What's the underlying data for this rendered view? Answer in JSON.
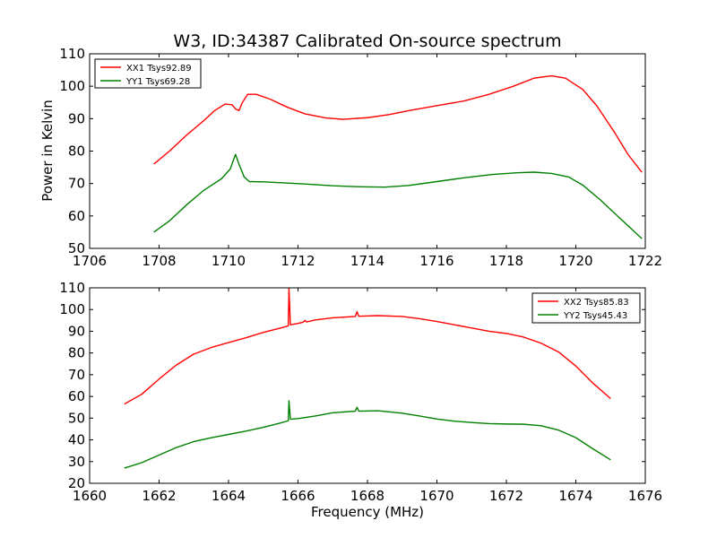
{
  "figure": {
    "title": "W3, ID:34387 Calibrated On-source spectrum",
    "ylabel": "Power in Kelvin",
    "xlabel": "Frequency (MHz)"
  },
  "chart_data": [
    {
      "type": "line",
      "xlim": [
        1706,
        1722
      ],
      "ylim": [
        50,
        110
      ],
      "xticks": [
        "1706",
        "1708",
        "1710",
        "1712",
        "1714",
        "1716",
        "1718",
        "1720",
        "1722"
      ],
      "yticks": [
        "50",
        "60",
        "70",
        "80",
        "90",
        "100",
        "110"
      ],
      "legend_position": "top-left",
      "series": [
        {
          "name": "XX1 Tsys92.89",
          "color": "#ff0000",
          "points": [
            [
              1707.85,
              76
            ],
            [
              1708.3,
              80
            ],
            [
              1708.8,
              85
            ],
            [
              1709.3,
              89.5
            ],
            [
              1709.6,
              92.5
            ],
            [
              1709.9,
              94.5
            ],
            [
              1710.1,
              94.3
            ],
            [
              1710.2,
              93
            ],
            [
              1710.3,
              92.5
            ],
            [
              1710.4,
              95
            ],
            [
              1710.55,
              97.5
            ],
            [
              1710.8,
              97.5
            ],
            [
              1711.2,
              96
            ],
            [
              1711.7,
              93.5
            ],
            [
              1712.2,
              91.5
            ],
            [
              1712.8,
              90.2
            ],
            [
              1713.3,
              89.8
            ],
            [
              1714,
              90.3
            ],
            [
              1714.6,
              91.2
            ],
            [
              1715.2,
              92.5
            ],
            [
              1716,
              94
            ],
            [
              1716.8,
              95.5
            ],
            [
              1717.5,
              97.5
            ],
            [
              1718.2,
              100
            ],
            [
              1718.8,
              102.5
            ],
            [
              1719.3,
              103.2
            ],
            [
              1719.7,
              102.5
            ],
            [
              1720.2,
              99
            ],
            [
              1720.6,
              94
            ],
            [
              1721.1,
              86
            ],
            [
              1721.5,
              79
            ],
            [
              1721.9,
              73.5
            ]
          ]
        },
        {
          "name": "YY1 Tsys69.28",
          "color": "#008000",
          "points": [
            [
              1707.85,
              55
            ],
            [
              1708.3,
              58.5
            ],
            [
              1708.8,
              63.5
            ],
            [
              1709.3,
              68
            ],
            [
              1709.8,
              71.5
            ],
            [
              1710.05,
              74.5
            ],
            [
              1710.2,
              79
            ],
            [
              1710.3,
              76
            ],
            [
              1710.45,
              72
            ],
            [
              1710.6,
              70.6
            ],
            [
              1711,
              70.5
            ],
            [
              1711.6,
              70.2
            ],
            [
              1712.3,
              69.8
            ],
            [
              1713,
              69.3
            ],
            [
              1713.8,
              69
            ],
            [
              1714.5,
              68.9
            ],
            [
              1715.2,
              69.4
            ],
            [
              1716,
              70.6
            ],
            [
              1716.8,
              71.8
            ],
            [
              1717.6,
              72.8
            ],
            [
              1718.3,
              73.3
            ],
            [
              1718.8,
              73.5
            ],
            [
              1719.3,
              73.1
            ],
            [
              1719.8,
              72
            ],
            [
              1720.2,
              69.5
            ],
            [
              1720.7,
              65
            ],
            [
              1721.2,
              60
            ],
            [
              1721.6,
              56
            ],
            [
              1721.9,
              53
            ]
          ]
        }
      ]
    },
    {
      "type": "line",
      "xlim": [
        1660,
        1676
      ],
      "ylim": [
        20,
        110
      ],
      "xticks": [
        "1660",
        "1662",
        "1664",
        "1666",
        "1668",
        "1670",
        "1672",
        "1674",
        "1676"
      ],
      "yticks": [
        "20",
        "30",
        "40",
        "50",
        "60",
        "70",
        "80",
        "90",
        "100",
        "110"
      ],
      "legend_position": "top-right",
      "series": [
        {
          "name": "XX2 Tsys85.83",
          "color": "#ff0000",
          "points": [
            [
              1661,
              56.5
            ],
            [
              1661.5,
              61
            ],
            [
              1662,
              68
            ],
            [
              1662.5,
              74.5
            ],
            [
              1663,
              79.5
            ],
            [
              1663.5,
              82.5
            ],
            [
              1664,
              84.8
            ],
            [
              1664.5,
              87
            ],
            [
              1665,
              89.5
            ],
            [
              1665.5,
              91.5
            ],
            [
              1665.72,
              92.5
            ],
            [
              1665.74,
              110
            ],
            [
              1665.78,
              93
            ],
            [
              1666,
              93.6
            ],
            [
              1666.15,
              94.2
            ],
            [
              1666.2,
              95
            ],
            [
              1666.25,
              94.3
            ],
            [
              1666.5,
              95.2
            ],
            [
              1667,
              96.2
            ],
            [
              1667.65,
              96.8
            ],
            [
              1667.7,
              99
            ],
            [
              1667.75,
              96.9
            ],
            [
              1668.3,
              97.2
            ],
            [
              1669,
              96.8
            ],
            [
              1669.5,
              95.8
            ],
            [
              1670,
              94.5
            ],
            [
              1670.5,
              93
            ],
            [
              1671,
              91.5
            ],
            [
              1671.5,
              90
            ],
            [
              1672,
              89
            ],
            [
              1672.5,
              87.3
            ],
            [
              1673,
              84.5
            ],
            [
              1673.5,
              80.5
            ],
            [
              1674,
              74
            ],
            [
              1674.5,
              66
            ],
            [
              1675,
              59
            ]
          ]
        },
        {
          "name": "YY2 Tsys45.43",
          "color": "#008000",
          "points": [
            [
              1661,
              27
            ],
            [
              1661.5,
              29.5
            ],
            [
              1662,
              33
            ],
            [
              1662.5,
              36.5
            ],
            [
              1663,
              39.2
            ],
            [
              1663.5,
              41
            ],
            [
              1664,
              42.5
            ],
            [
              1664.5,
              44
            ],
            [
              1665,
              45.8
            ],
            [
              1665.5,
              47.8
            ],
            [
              1665.72,
              48.8
            ],
            [
              1665.74,
              58
            ],
            [
              1665.78,
              49.5
            ],
            [
              1666,
              49.8
            ],
            [
              1666.5,
              51
            ],
            [
              1667,
              52.5
            ],
            [
              1667.65,
              53.2
            ],
            [
              1667.7,
              55
            ],
            [
              1667.75,
              53.2
            ],
            [
              1668.3,
              53.4
            ],
            [
              1669,
              52.3
            ],
            [
              1669.5,
              51
            ],
            [
              1670,
              49.6
            ],
            [
              1670.5,
              48.6
            ],
            [
              1671,
              48
            ],
            [
              1671.5,
              47.5
            ],
            [
              1672,
              47.3
            ],
            [
              1672.5,
              47.2
            ],
            [
              1673,
              46.5
            ],
            [
              1673.5,
              44.5
            ],
            [
              1674,
              41
            ],
            [
              1674.5,
              35.8
            ],
            [
              1675,
              30.8
            ]
          ]
        }
      ]
    }
  ]
}
